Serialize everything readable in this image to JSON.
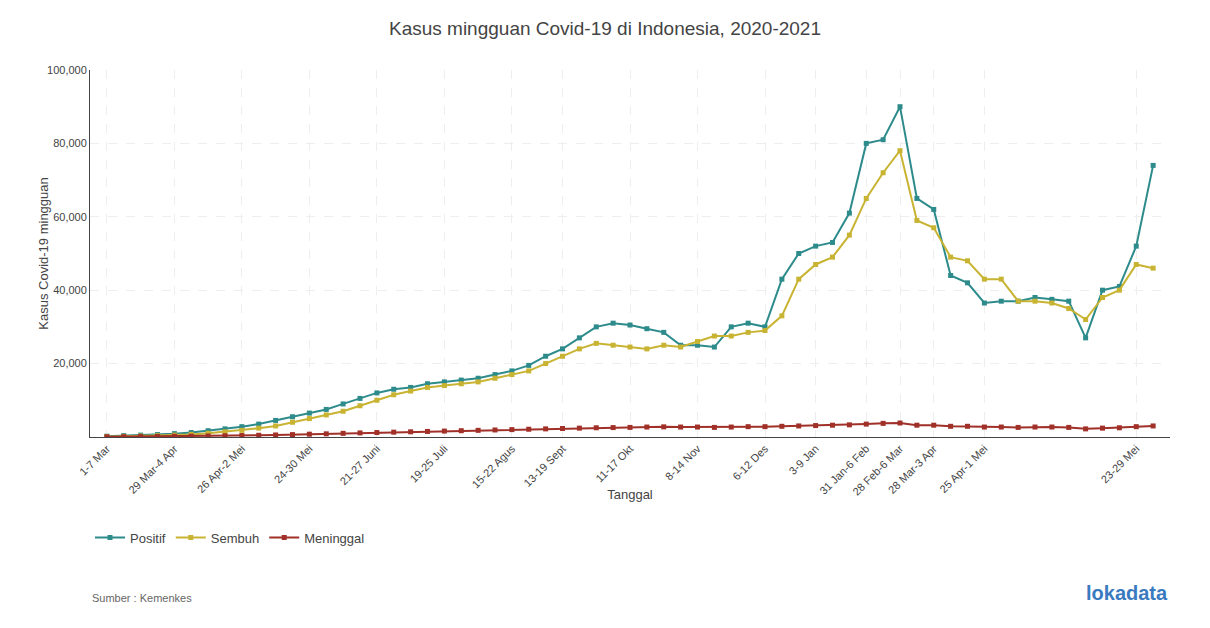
{
  "chart_data": {
    "type": "line",
    "title": "Kasus mingguan Covid-19 di Indonesia, 2020-2021",
    "xlabel": "Tanggal",
    "ylabel": "Kasus Covid-19 mingguan",
    "annotations": [
      "Sumber : Kemenkes",
      "lokadata"
    ],
    "categories": [
      "1-7 Mar",
      null,
      null,
      null,
      "29 Mar-4 Apr",
      null,
      null,
      null,
      "26 Apr-2 Mei",
      null,
      null,
      null,
      "24-30 Mei",
      null,
      null,
      null,
      "21-27 Juni",
      null,
      null,
      null,
      "19-25 Juli",
      null,
      null,
      null,
      "15-22 Agus",
      null,
      null,
      "13-19 Sept",
      null,
      null,
      null,
      "11-17 Okt",
      null,
      null,
      null,
      "8-14 Nov",
      null,
      null,
      null,
      "6-12 Des",
      null,
      null,
      "3-9 Jan",
      null,
      null,
      "31 Jan-6 Feb",
      null,
      "28 Feb-6 Mar",
      null,
      "28 Mar-3 Apr",
      null,
      null,
      "25 Apr-1 Mei",
      null,
      null,
      null,
      null,
      null,
      null,
      null,
      null,
      "23-29 Mei",
      null
    ],
    "series": [
      {
        "name": "Positif",
        "color": "#2e8b8b",
        "values": [
          200,
          350,
          500,
          650,
          900,
          1200,
          1700,
          2200,
          2800,
          3500,
          4500,
          5500,
          6500,
          7500,
          9000,
          10500,
          12000,
          13000,
          13500,
          14500,
          15000,
          15500,
          16000,
          17000,
          18000,
          19500,
          22000,
          24000,
          27000,
          30000,
          31000,
          30500,
          29500,
          28500,
          25000,
          25000,
          24500,
          30000,
          31000,
          30000,
          43000,
          50000,
          52000,
          53000,
          61000,
          80000,
          81000,
          90000,
          65000,
          62000,
          44000,
          42000,
          36500,
          37000,
          37000,
          38000,
          37500,
          37000,
          27000,
          40000,
          41000,
          52000,
          74000
        ]
      },
      {
        "name": "Sembuh",
        "color": "#c8b432",
        "values": [
          50,
          150,
          250,
          350,
          500,
          700,
          1000,
          1400,
          1800,
          2400,
          3000,
          4000,
          5000,
          6000,
          7000,
          8500,
          10000,
          11500,
          12500,
          13500,
          14000,
          14500,
          15000,
          16000,
          17000,
          18000,
          20000,
          22000,
          24000,
          25500,
          25000,
          24500,
          24000,
          25000,
          24500,
          26000,
          27500,
          27500,
          28500,
          29000,
          33000,
          43000,
          47000,
          49000,
          55000,
          65000,
          72000,
          78000,
          59000,
          57000,
          49000,
          48000,
          43000,
          43000,
          37000,
          37000,
          36500,
          35000,
          32000,
          38000,
          40000,
          47000,
          46000
        ]
      },
      {
        "name": "Meninggal",
        "color": "#a03028",
        "values": [
          30,
          60,
          100,
          130,
          170,
          210,
          260,
          320,
          380,
          450,
          540,
          640,
          750,
          850,
          980,
          1100,
          1200,
          1300,
          1400,
          1500,
          1600,
          1700,
          1800,
          1900,
          2000,
          2100,
          2200,
          2300,
          2400,
          2500,
          2550,
          2600,
          2700,
          2750,
          2700,
          2700,
          2600,
          2700,
          2800,
          2800,
          2900,
          3000,
          3100,
          3200,
          3300,
          3500,
          3700,
          3800,
          3200,
          3200,
          2900,
          2900,
          2700,
          2700,
          2600,
          2700,
          2700,
          2600,
          2200,
          2400,
          2500,
          2800,
          3000
        ]
      }
    ],
    "ylim": [
      0,
      100000
    ],
    "yticks": [
      {
        "value": 20000,
        "label": "20,000"
      },
      {
        "value": 40000,
        "label": "40,000"
      },
      {
        "value": 60000,
        "label": "60,000"
      },
      {
        "value": 80000,
        "label": "80,000"
      },
      {
        "value": 100000,
        "label": "100,000"
      }
    ],
    "grid": true,
    "legend": "lower left",
    "marker": "square",
    "line_style": "solid"
  }
}
